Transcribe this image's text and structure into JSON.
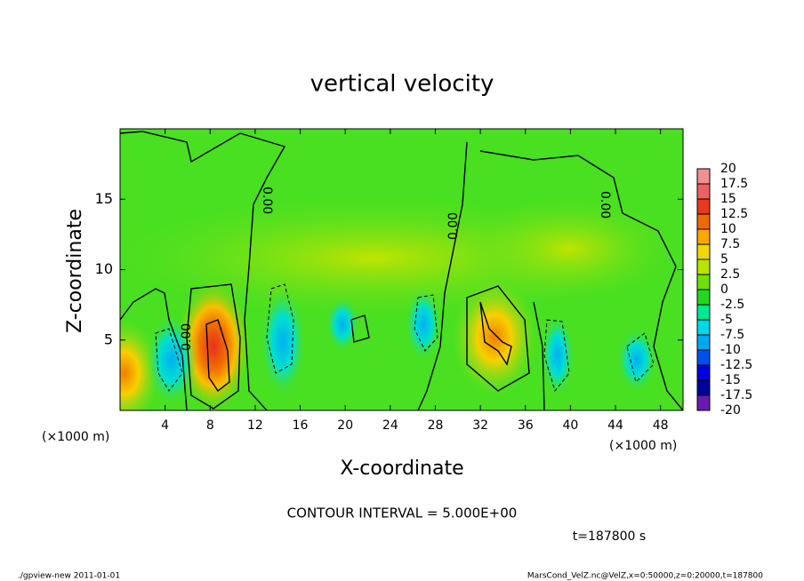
{
  "chart_data": {
    "type": "contour",
    "title": "vertical velocity",
    "xlabel": "X-coordinate",
    "ylabel": "Z-coordinate",
    "x_unit": "(×1000 m)",
    "xlim": [
      0,
      50
    ],
    "xticks": [
      4,
      8,
      12,
      16,
      20,
      24,
      28,
      32,
      36,
      40,
      44,
      48
    ],
    "ylim": [
      0,
      20
    ],
    "yticks": [
      5,
      10,
      15
    ],
    "contour_label": "0.00",
    "colorbar": {
      "levels": [
        -20,
        -17.5,
        -15,
        -12.5,
        -10,
        -7.5,
        -5,
        -2.5,
        0,
        2.5,
        5,
        7.5,
        10,
        12.5,
        15,
        17.5,
        20
      ],
      "colors": [
        "#6a1ab0",
        "#0000a0",
        "#0000e0",
        "#0050f0",
        "#00a8f0",
        "#00d8e8",
        "#00e890",
        "#20d820",
        "#70e000",
        "#b8e400",
        "#f0d800",
        "#f8a800",
        "#f06800",
        "#e83820",
        "#f06060",
        "#f09090"
      ]
    },
    "contour_interval": "CONTOUR INTERVAL = 5.000E+00",
    "time_label": "t=187800 s",
    "footer_left": "./gpview-new  2011-01-01",
    "footer_right": "MarsCond_VelZ.nc@VelZ,x=0:50000,z=0:20000,t=187800"
  }
}
